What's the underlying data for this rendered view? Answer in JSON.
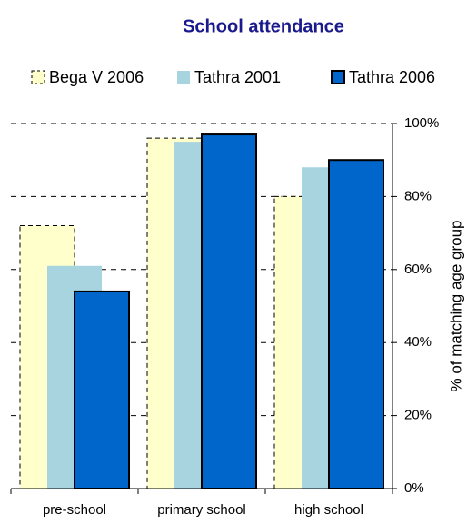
{
  "chart_data": {
    "type": "bar",
    "title": "School attendance",
    "categories": [
      "pre-school",
      "primary school",
      "high school"
    ],
    "series": [
      {
        "name": "Bega V 2006",
        "color": "#ffffcc",
        "edgecolor": "#000000",
        "linestyle": "dashed",
        "values": [
          72,
          96,
          80
        ]
      },
      {
        "name": "Tathra 2001",
        "color": "#a8d4e0",
        "edgecolor": "none",
        "linestyle": "none",
        "values": [
          61,
          95,
          88
        ]
      },
      {
        "name": "Tathra 2006",
        "color": "#0066cc",
        "edgecolor": "#000000",
        "linestyle": "solid",
        "values": [
          54,
          97,
          90
        ]
      }
    ],
    "ylabel": "% of matching age group",
    "ylim": [
      0,
      100
    ],
    "yticks": [
      {
        "value": 0,
        "label": "0%"
      },
      {
        "value": 20,
        "label": "20%"
      },
      {
        "value": 40,
        "label": "40%"
      },
      {
        "value": 60,
        "label": "60%"
      },
      {
        "value": 80,
        "label": "80%"
      },
      {
        "value": 100,
        "label": "100%"
      }
    ],
    "grid": true,
    "legend": "top",
    "yaxis_side": "right"
  }
}
